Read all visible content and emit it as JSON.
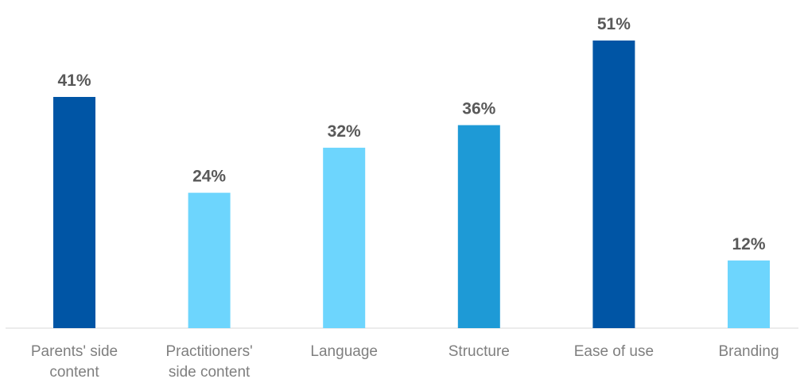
{
  "chart_data": {
    "type": "bar",
    "categories": [
      [
        "Parents' side",
        "content"
      ],
      [
        "Practitioners'",
        "side content"
      ],
      [
        "Language"
      ],
      [
        "Structure"
      ],
      [
        "Ease of use"
      ],
      [
        "Branding"
      ]
    ],
    "values": [
      41,
      24,
      32,
      36,
      51,
      12
    ],
    "value_labels": [
      "41%",
      "24%",
      "32%",
      "36%",
      "51%",
      "12%"
    ],
    "bar_colors": [
      "#0055a5",
      "#6dd5fd",
      "#6dd5fd",
      "#1e9ad6",
      "#0055a5",
      "#6dd5fd"
    ],
    "title": "",
    "xlabel": "",
    "ylabel": "",
    "ylim": [
      0,
      51
    ],
    "grid": false,
    "legend": "none"
  }
}
